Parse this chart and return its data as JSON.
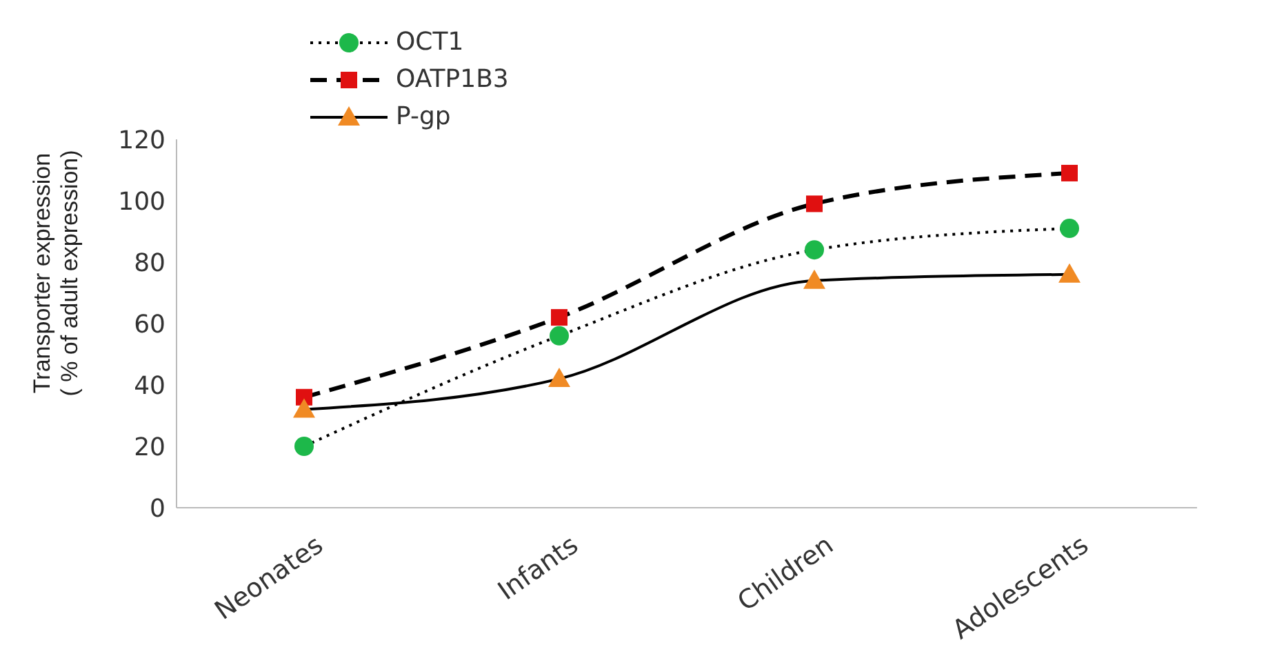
{
  "chart_data": {
    "type": "line",
    "ylabel": "Transporter expression\n( % of adult expression)",
    "categories": [
      "Neonates",
      "Infants",
      "Children",
      "Adolescents"
    ],
    "series": [
      {
        "name": "OCT1",
        "color": "#1db84a",
        "values": [
          20,
          56,
          84,
          91
        ],
        "marker": "circle",
        "line_style": "dotted"
      },
      {
        "name": "OATP1B3",
        "color": "#e01010",
        "values": [
          36,
          62,
          99,
          109
        ],
        "marker": "square",
        "line_style": "dashed"
      },
      {
        "name": "P-gp",
        "color": "#f08a24",
        "values": [
          32,
          42,
          74,
          76
        ],
        "marker": "triangle",
        "line_style": "solid"
      }
    ],
    "ylim": [
      0,
      120
    ],
    "yticks": [
      0,
      20,
      40,
      60,
      80,
      100,
      120
    ],
    "grid": false,
    "legend": "top left"
  }
}
